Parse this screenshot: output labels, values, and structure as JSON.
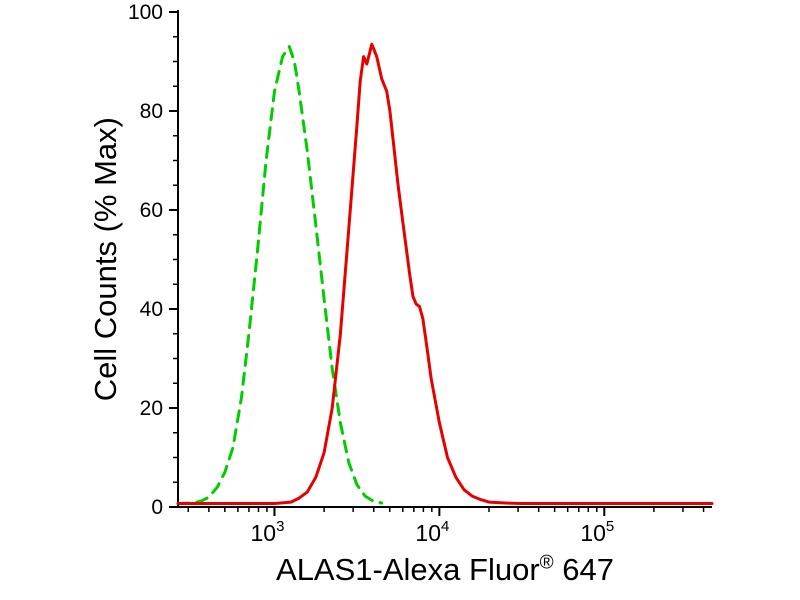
{
  "page": {
    "background": "#ffffff"
  },
  "chart_data": {
    "type": "line",
    "title": "",
    "ylabel": "Cell Counts (% Max)",
    "xlabel": "ALAS1-Alexa Fluor® 647",
    "xlabel_parts": {
      "pre": "ALAS1-Alexa Fluor",
      "sup": "®",
      "post": " 647"
    },
    "x_scale": "log10",
    "xlim": [
      260,
      450000
    ],
    "ylim": [
      0,
      100
    ],
    "y_major_ticks": [
      0,
      20,
      40,
      60,
      80,
      100
    ],
    "y_minor_step": 5,
    "x_major_ticks": [
      1000,
      10000,
      100000
    ],
    "x_major_tick_exponents": [
      3,
      4,
      5
    ],
    "grid": false,
    "legend": "none",
    "axis_color": "#000000",
    "series": [
      {
        "id": "green-dashed-curve",
        "name": "green dashed curve (peak ~93% at ~1.2e3)",
        "color": "#00cc00",
        "style": "dashed",
        "points": [
          [
            260,
            0.7
          ],
          [
            320,
            0.8
          ],
          [
            360,
            1.2
          ],
          [
            400,
            2
          ],
          [
            450,
            4
          ],
          [
            500,
            7
          ],
          [
            560,
            12
          ],
          [
            630,
            22
          ],
          [
            700,
            35
          ],
          [
            790,
            52
          ],
          [
            890,
            70
          ],
          [
            1000,
            84
          ],
          [
            1120,
            91
          ],
          [
            1230,
            93
          ],
          [
            1320,
            90
          ],
          [
            1410,
            84
          ],
          [
            1580,
            72
          ],
          [
            1780,
            57
          ],
          [
            2000,
            42
          ],
          [
            2240,
            28
          ],
          [
            2510,
            17
          ],
          [
            2820,
            9
          ],
          [
            3160,
            4.5
          ],
          [
            3550,
            2.2
          ],
          [
            3980,
            1.2
          ],
          [
            4470,
            0.8
          ]
        ]
      },
      {
        "id": "red-solid-curve",
        "name": "red solid curve (peak ~93.5% at ~3.9e3)",
        "color": "#e60000",
        "style": "solid",
        "points": [
          [
            260,
            0.7
          ],
          [
            600,
            0.7
          ],
          [
            1000,
            0.7
          ],
          [
            1260,
            1
          ],
          [
            1410,
            1.8
          ],
          [
            1580,
            3
          ],
          [
            1780,
            6
          ],
          [
            2000,
            11
          ],
          [
            2240,
            20
          ],
          [
            2510,
            35
          ],
          [
            2820,
            56
          ],
          [
            3160,
            77
          ],
          [
            3310,
            86
          ],
          [
            3470,
            91
          ],
          [
            3630,
            89.5
          ],
          [
            3890,
            93.5
          ],
          [
            4170,
            91
          ],
          [
            4470,
            86.5
          ],
          [
            4790,
            84
          ],
          [
            5010,
            80
          ],
          [
            5250,
            74
          ],
          [
            5620,
            65
          ],
          [
            6030,
            57
          ],
          [
            6610,
            47
          ],
          [
            6920,
            42.5
          ],
          [
            7240,
            41
          ],
          [
            7580,
            40.5
          ],
          [
            7940,
            38
          ],
          [
            8510,
            31
          ],
          [
            8910,
            26
          ],
          [
            10000,
            17
          ],
          [
            11200,
            10
          ],
          [
            12600,
            6
          ],
          [
            14100,
            3.5
          ],
          [
            15800,
            2.2
          ],
          [
            17800,
            1.5
          ],
          [
            20000,
            1
          ],
          [
            25100,
            0.8
          ],
          [
            31600,
            0.7
          ],
          [
            50000,
            0.7
          ],
          [
            100000,
            0.7
          ],
          [
            450000,
            0.7
          ]
        ]
      }
    ]
  }
}
